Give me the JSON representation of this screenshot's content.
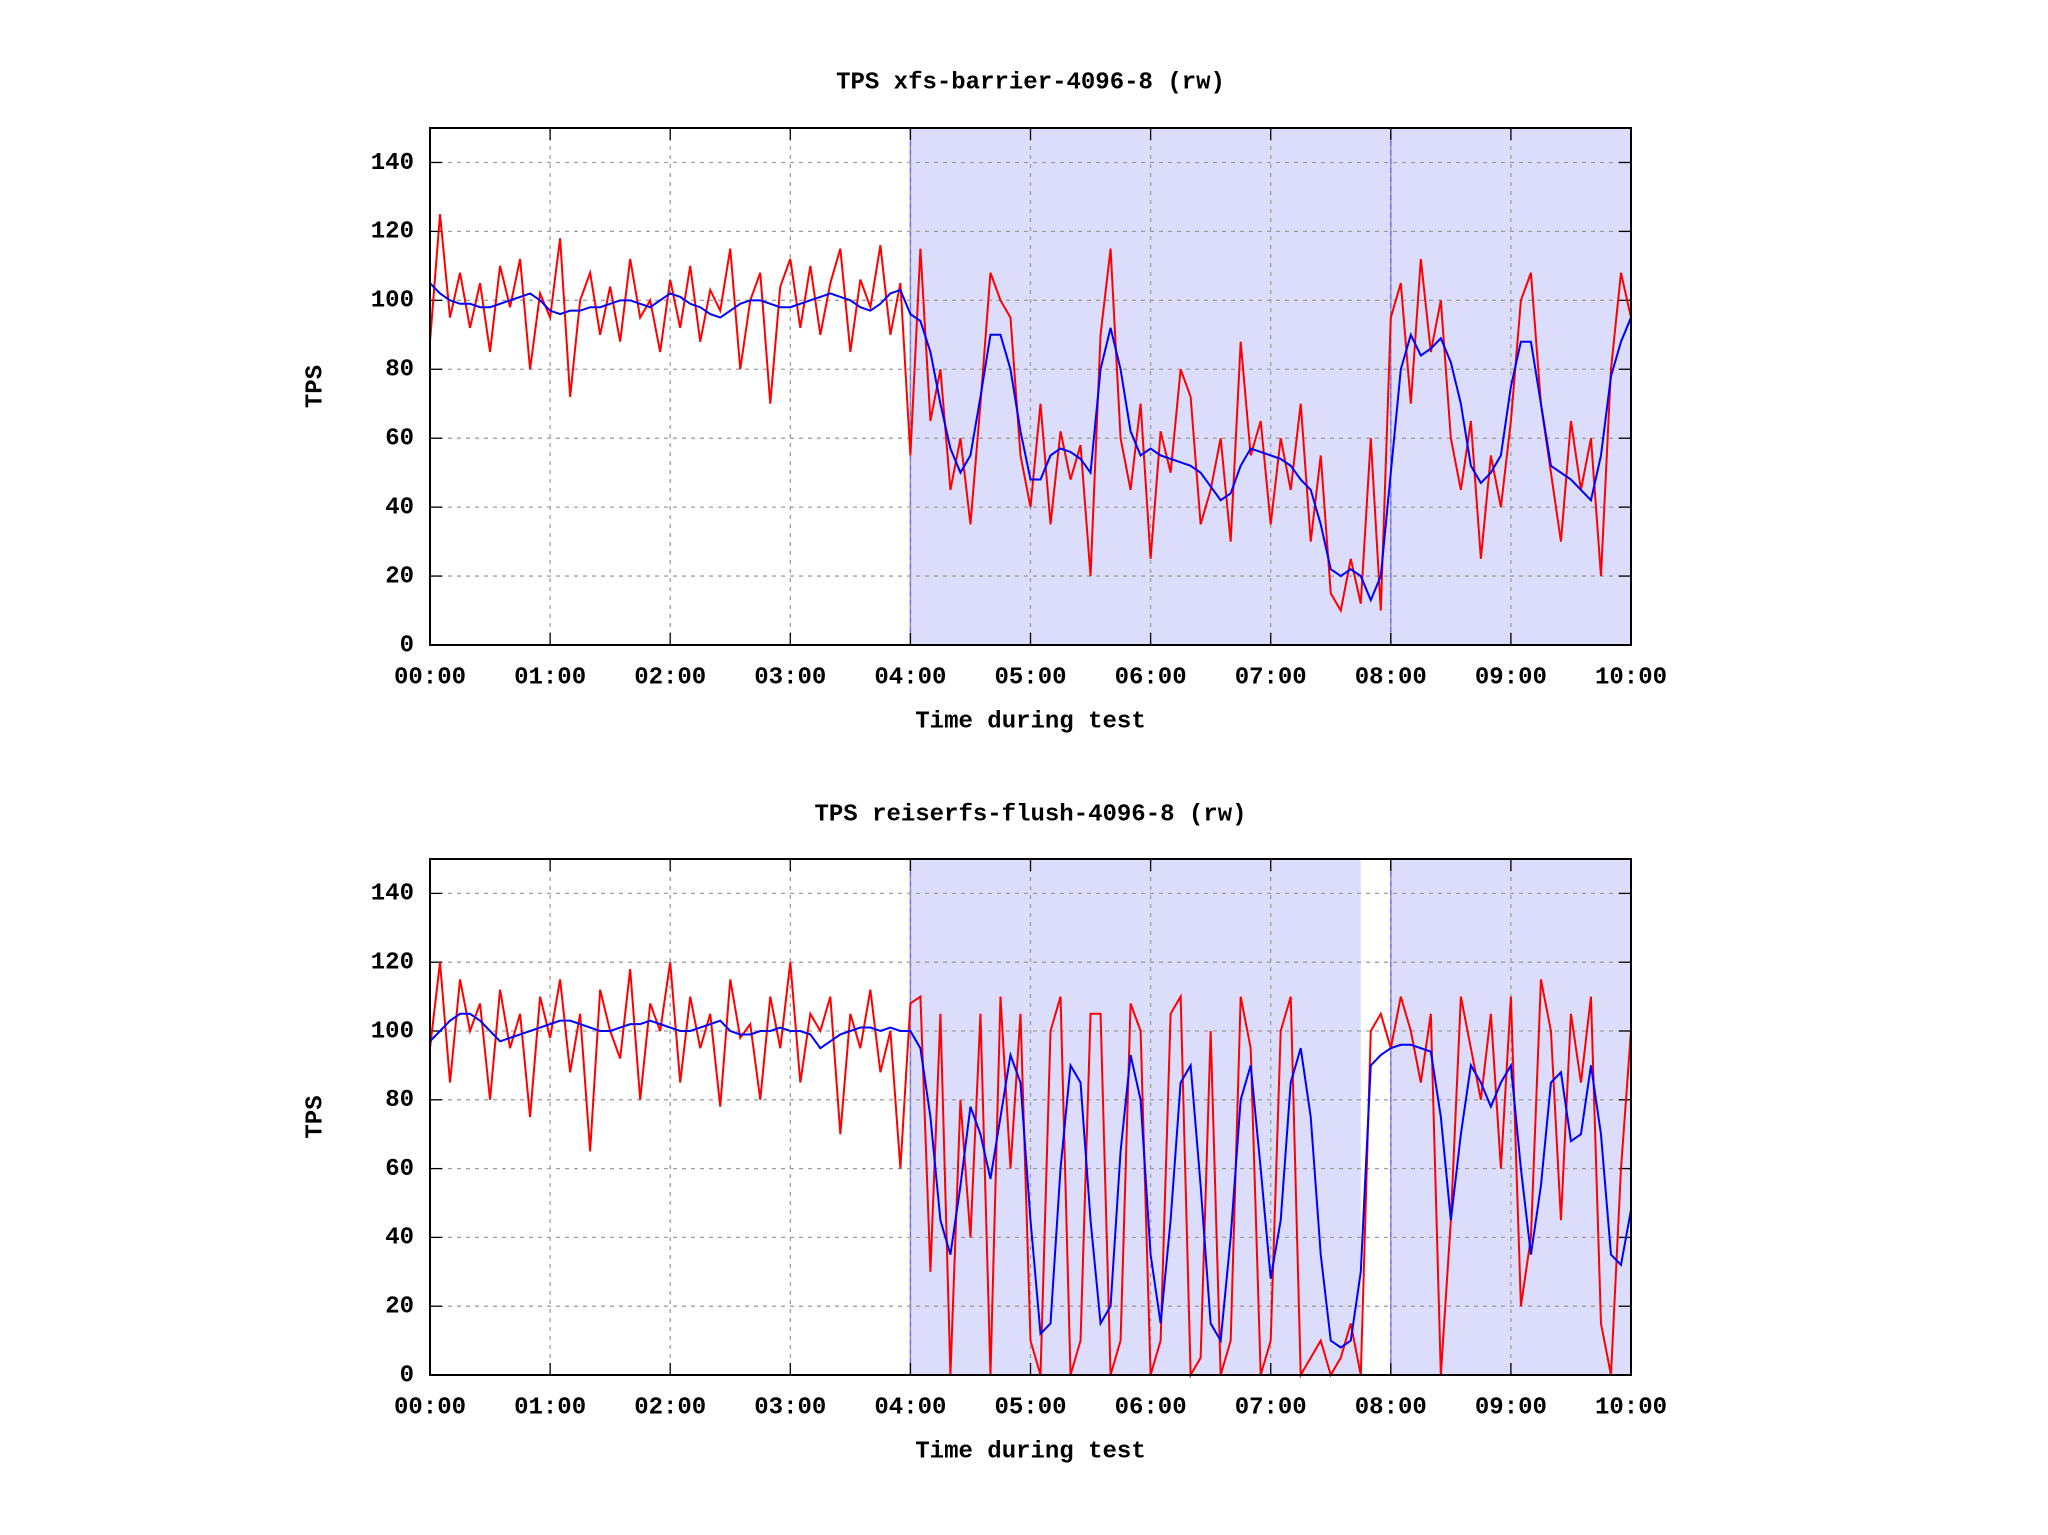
{
  "chart_data": [
    {
      "type": "line",
      "title": "TPS xfs-barrier-4096-8 (rw)",
      "xlabel": "Time during test",
      "ylabel": "TPS",
      "x": [
        0,
        5,
        10,
        15,
        20,
        25,
        30,
        35,
        40,
        45,
        50,
        55,
        60,
        65,
        70,
        75,
        80,
        85,
        90,
        95,
        100,
        105,
        110,
        115,
        120,
        125,
        130,
        135,
        140,
        145,
        150,
        155,
        160,
        165,
        170,
        175,
        180,
        185,
        190,
        195,
        200,
        205,
        210,
        215,
        220,
        225,
        230,
        235,
        240,
        245,
        250,
        255,
        260,
        265,
        270,
        275,
        280,
        285,
        290,
        295,
        300,
        305,
        310,
        315,
        320,
        325,
        330,
        335,
        340,
        345,
        350,
        355,
        360,
        365,
        370,
        375,
        380,
        385,
        390,
        395,
        400,
        405,
        410,
        415,
        420,
        425,
        430,
        435,
        440,
        445,
        450,
        455,
        460,
        465,
        470,
        475,
        480,
        485,
        490,
        495,
        500,
        505,
        510,
        515,
        520,
        525,
        530,
        535,
        540,
        545,
        550,
        555,
        560,
        565,
        570,
        575,
        580,
        585,
        590,
        595,
        600
      ],
      "series": [
        {
          "color": "#ff0000",
          "values": [
            88,
            125,
            95,
            108,
            92,
            105,
            85,
            110,
            98,
            112,
            80,
            102,
            95,
            118,
            72,
            100,
            108,
            90,
            104,
            88,
            112,
            95,
            100,
            85,
            106,
            92,
            110,
            88,
            103,
            97,
            115,
            80,
            100,
            108,
            70,
            104,
            112,
            92,
            110,
            90,
            105,
            115,
            85,
            106,
            98,
            116,
            90,
            105,
            55,
            115,
            65,
            80,
            45,
            60,
            35,
            70,
            108,
            100,
            95,
            55,
            40,
            70,
            35,
            62,
            48,
            58,
            20,
            90,
            115,
            60,
            45,
            70,
            25,
            62,
            50,
            80,
            72,
            35,
            45,
            60,
            30,
            88,
            55,
            65,
            35,
            60,
            45,
            70,
            30,
            55,
            15,
            10,
            25,
            12,
            60,
            10,
            95,
            105,
            70,
            112,
            85,
            100,
            60,
            45,
            65,
            25,
            55,
            40,
            65,
            100,
            108,
            70,
            50,
            30,
            65,
            45,
            60,
            20,
            80,
            108,
            95
          ]
        },
        {
          "color": "#0000ff",
          "values": [
            105,
            102,
            100,
            99,
            99,
            98,
            98,
            99,
            100,
            101,
            102,
            100,
            97,
            96,
            97,
            97,
            98,
            98,
            99,
            100,
            100,
            99,
            98,
            100,
            102,
            101,
            99,
            98,
            96,
            95,
            97,
            99,
            100,
            100,
            99,
            98,
            98,
            99,
            100,
            101,
            102,
            101,
            100,
            98,
            97,
            99,
            102,
            103,
            96,
            94,
            85,
            70,
            57,
            50,
            55,
            72,
            90,
            90,
            80,
            62,
            48,
            48,
            55,
            57,
            56,
            54,
            50,
            80,
            92,
            80,
            62,
            55,
            57,
            55,
            54,
            53,
            52,
            50,
            46,
            42,
            44,
            52,
            57,
            56,
            55,
            54,
            52,
            48,
            45,
            35,
            22,
            20,
            22,
            20,
            13,
            20,
            50,
            80,
            90,
            84,
            86,
            89,
            82,
            70,
            52,
            47,
            50,
            55,
            75,
            88,
            88,
            70,
            52,
            50,
            48,
            45,
            42,
            55,
            78,
            88,
            95
          ]
        }
      ],
      "shaded_regions": [
        [
          240,
          480
        ],
        [
          480,
          600
        ]
      ],
      "xlim": [
        0,
        600
      ],
      "xticks": [
        {
          "value": 0,
          "label": "00:00"
        },
        {
          "value": 60,
          "label": "01:00"
        },
        {
          "value": 120,
          "label": "02:00"
        },
        {
          "value": 180,
          "label": "03:00"
        },
        {
          "value": 240,
          "label": "04:00"
        },
        {
          "value": 300,
          "label": "05:00"
        },
        {
          "value": 360,
          "label": "06:00"
        },
        {
          "value": 420,
          "label": "07:00"
        },
        {
          "value": 480,
          "label": "08:00"
        },
        {
          "value": 540,
          "label": "09:00"
        },
        {
          "value": 600,
          "label": "10:00"
        }
      ],
      "ylim": [
        0,
        150
      ],
      "yticks": [
        0,
        20,
        40,
        60,
        80,
        100,
        120,
        140
      ],
      "grid": true
    },
    {
      "type": "line",
      "title": "TPS reiserfs-flush-4096-8 (rw)",
      "xlabel": "Time during test",
      "ylabel": "TPS",
      "x": [
        0,
        5,
        10,
        15,
        20,
        25,
        30,
        35,
        40,
        45,
        50,
        55,
        60,
        65,
        70,
        75,
        80,
        85,
        90,
        95,
        100,
        105,
        110,
        115,
        120,
        125,
        130,
        135,
        140,
        145,
        150,
        155,
        160,
        165,
        170,
        175,
        180,
        185,
        190,
        195,
        200,
        205,
        210,
        215,
        220,
        225,
        230,
        235,
        240,
        245,
        250,
        255,
        260,
        265,
        270,
        275,
        280,
        285,
        290,
        295,
        300,
        305,
        310,
        315,
        320,
        325,
        330,
        335,
        340,
        345,
        350,
        355,
        360,
        365,
        370,
        375,
        380,
        385,
        390,
        395,
        400,
        405,
        410,
        415,
        420,
        425,
        430,
        435,
        440,
        445,
        450,
        455,
        460,
        465,
        470,
        475,
        480,
        485,
        490,
        495,
        500,
        505,
        510,
        515,
        520,
        525,
        530,
        535,
        540,
        545,
        550,
        555,
        560,
        565,
        570,
        575,
        580,
        585,
        590,
        595,
        600
      ],
      "series": [
        {
          "color": "#ff0000",
          "values": [
            95,
            120,
            85,
            115,
            100,
            108,
            80,
            112,
            95,
            105,
            75,
            110,
            98,
            115,
            88,
            105,
            65,
            112,
            100,
            92,
            118,
            80,
            108,
            100,
            120,
            85,
            110,
            95,
            105,
            78,
            115,
            98,
            102,
            80,
            110,
            95,
            120,
            85,
            105,
            100,
            110,
            70,
            105,
            95,
            112,
            88,
            100,
            60,
            108,
            110,
            30,
            105,
            0,
            80,
            40,
            105,
            0,
            110,
            60,
            105,
            10,
            0,
            100,
            110,
            0,
            10,
            105,
            105,
            0,
            10,
            108,
            100,
            0,
            10,
            105,
            110,
            0,
            5,
            100,
            0,
            10,
            110,
            95,
            0,
            10,
            100,
            110,
            0,
            5,
            10,
            0,
            5,
            15,
            0,
            100,
            105,
            95,
            110,
            100,
            85,
            105,
            0,
            45,
            110,
            95,
            80,
            105,
            60,
            110,
            20,
            40,
            115,
            100,
            45,
            105,
            85,
            110,
            15,
            0,
            60,
            100
          ]
        },
        {
          "color": "#0000ff",
          "values": [
            97,
            100,
            103,
            105,
            105,
            103,
            100,
            97,
            98,
            99,
            100,
            101,
            102,
            103,
            103,
            102,
            101,
            100,
            100,
            101,
            102,
            102,
            103,
            102,
            101,
            100,
            100,
            101,
            102,
            103,
            100,
            99,
            99,
            100,
            100,
            101,
            100,
            100,
            99,
            95,
            97,
            99,
            100,
            101,
            101,
            100,
            101,
            100,
            100,
            95,
            75,
            45,
            35,
            55,
            78,
            70,
            57,
            75,
            93,
            85,
            45,
            12,
            15,
            60,
            90,
            85,
            45,
            15,
            20,
            65,
            93,
            80,
            35,
            15,
            45,
            85,
            90,
            55,
            15,
            10,
            40,
            80,
            90,
            60,
            28,
            45,
            85,
            95,
            75,
            35,
            10,
            8,
            10,
            30,
            90,
            93,
            95,
            96,
            96,
            95,
            94,
            75,
            45,
            70,
            90,
            85,
            78,
            85,
            90,
            60,
            35,
            55,
            85,
            88,
            68,
            70,
            90,
            70,
            35,
            32,
            48
          ]
        }
      ],
      "shaded_regions": [
        [
          240,
          465
        ],
        [
          480,
          600
        ]
      ],
      "xlim": [
        0,
        600
      ],
      "xticks": [
        {
          "value": 0,
          "label": "00:00"
        },
        {
          "value": 60,
          "label": "01:00"
        },
        {
          "value": 120,
          "label": "02:00"
        },
        {
          "value": 180,
          "label": "03:00"
        },
        {
          "value": 240,
          "label": "04:00"
        },
        {
          "value": 300,
          "label": "05:00"
        },
        {
          "value": 360,
          "label": "06:00"
        },
        {
          "value": 420,
          "label": "07:00"
        },
        {
          "value": 480,
          "label": "08:00"
        },
        {
          "value": 540,
          "label": "09:00"
        },
        {
          "value": 600,
          "label": "10:00"
        }
      ],
      "ylim": [
        0,
        150
      ],
      "yticks": [
        0,
        20,
        40,
        60,
        80,
        100,
        120,
        140
      ],
      "grid": true
    }
  ]
}
